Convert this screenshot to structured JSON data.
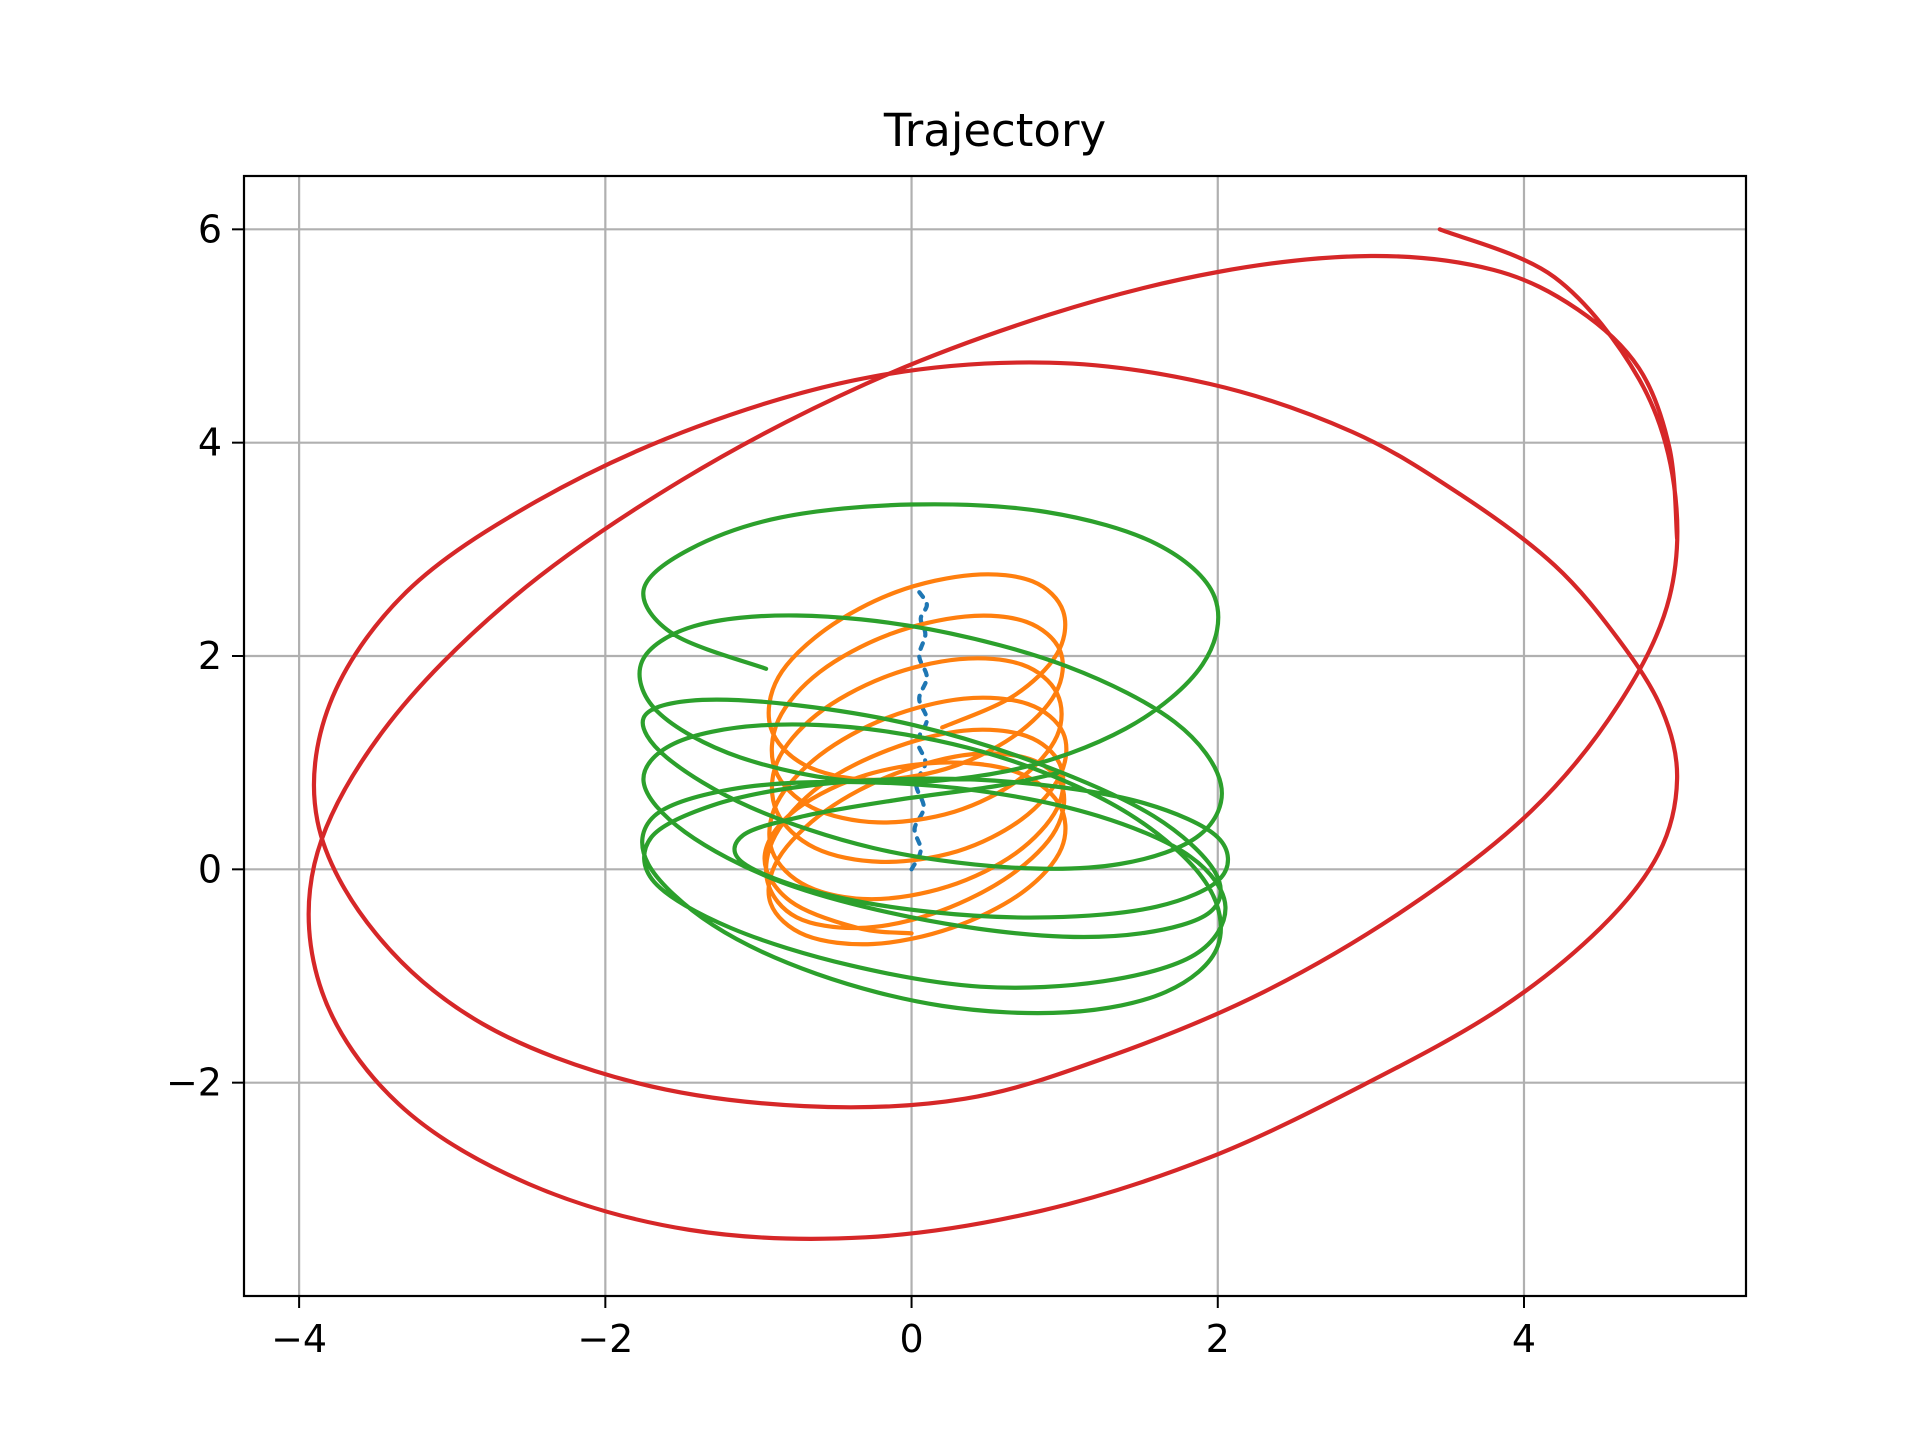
{
  "chart_data": {
    "type": "line",
    "title": "Trajectory",
    "xlabel": "",
    "ylabel": "",
    "xlim": [
      -4.36,
      5.45
    ],
    "ylim": [
      -4.0,
      6.5
    ],
    "grid": true,
    "x_ticks": [
      -4,
      -2,
      0,
      2,
      4
    ],
    "y_ticks": [
      -2,
      0,
      2,
      4,
      6
    ],
    "x_tick_labels": [
      "−4",
      "−2",
      "0",
      "2",
      "4"
    ],
    "y_tick_labels": [
      "−2",
      "0",
      "2",
      "4",
      "6"
    ],
    "series": [
      {
        "color": "#1f77b4",
        "dashed": true,
        "x": [
          0.0,
          0.06,
          0.02,
          0.08,
          0.03,
          0.09,
          0.04,
          0.1,
          0.05,
          0.1,
          0.05,
          0.09,
          0.06,
          0.1,
          0.05
        ],
        "y": [
          0.0,
          0.18,
          0.38,
          0.58,
          0.8,
          1.0,
          1.2,
          1.4,
          1.6,
          1.8,
          2.0,
          2.2,
          2.35,
          2.48,
          2.6
        ]
      },
      {
        "color": "#ff7f0e",
        "x": [
          0.0,
          -0.35,
          -0.79,
          -0.96,
          -0.79,
          -0.35,
          0.18,
          0.67,
          0.96,
          0.98,
          0.72,
          0.26,
          -0.25,
          -0.69,
          -0.92,
          -0.87,
          -0.56,
          -0.1,
          0.4,
          0.8,
          0.99,
          0.92,
          0.6,
          0.13,
          -0.35,
          -0.75,
          -0.94,
          -0.89,
          -0.6,
          -0.15,
          0.34,
          0.75,
          0.97,
          0.95,
          0.68,
          0.24,
          -0.26,
          -0.68,
          -0.91,
          -0.88,
          -0.6,
          -0.16,
          0.34,
          0.76,
          0.99,
          0.97,
          0.72,
          0.3,
          -0.2,
          -0.63,
          -0.88,
          -0.88,
          -0.62,
          -0.18,
          0.31,
          0.72,
          0.95,
          0.95,
          0.7,
          0.28,
          -0.22,
          -0.65,
          -0.89,
          -0.87,
          -0.6,
          -0.15,
          0.35,
          0.75,
          0.97,
          0.94,
          0.66,
          0.22,
          -0.28,
          -0.7,
          -0.92,
          -0.87,
          -0.56,
          -0.1,
          0.4,
          0.79,
          0.99,
          0.95,
          0.66,
          0.2
        ],
        "y": [
          -0.6,
          -0.55,
          -0.3,
          0.1,
          0.52,
          0.86,
          1.0,
          0.92,
          0.62,
          0.2,
          -0.22,
          -0.55,
          -0.7,
          -0.62,
          -0.32,
          0.1,
          0.55,
          0.9,
          1.08,
          1.02,
          0.74,
          0.32,
          -0.1,
          -0.42,
          -0.55,
          -0.45,
          -0.12,
          0.32,
          0.78,
          1.12,
          1.3,
          1.25,
          0.98,
          0.57,
          0.15,
          -0.16,
          -0.28,
          -0.16,
          0.17,
          0.62,
          1.07,
          1.42,
          1.6,
          1.55,
          1.28,
          0.88,
          0.47,
          0.17,
          0.07,
          0.2,
          0.54,
          1.0,
          1.45,
          1.8,
          1.97,
          1.92,
          1.65,
          1.25,
          0.84,
          0.54,
          0.44,
          0.58,
          0.93,
          1.4,
          1.85,
          2.2,
          2.37,
          2.32,
          2.05,
          1.65,
          1.24,
          0.94,
          0.84,
          0.98,
          1.33,
          1.8,
          2.25,
          2.6,
          2.76,
          2.7,
          2.42,
          2.02,
          1.62,
          1.33
        ]
      },
      {
        "color": "#2ca02c",
        "x": [
          0.95,
          0.55,
          -0.1,
          -0.7,
          -1.1,
          -1.1,
          -0.6,
          0.13,
          0.9,
          1.6,
          2.02,
          2.0,
          1.52,
          0.8,
          0.05,
          -0.7,
          -1.3,
          -1.7,
          -1.68,
          -1.18,
          -0.4,
          0.45,
          1.25,
          1.85,
          2.05,
          1.82,
          1.22,
          0.42,
          -0.45,
          -1.18,
          -1.68,
          -1.72,
          -1.3,
          -0.62,
          0.2,
          1.02,
          1.66,
          2.0,
          1.92,
          1.42,
          0.65,
          -0.2,
          -0.98,
          -1.55,
          -1.75,
          -1.48,
          -0.85,
          0.0,
          0.85,
          1.5,
          1.95,
          1.98,
          1.58,
          0.85,
          0.02,
          -0.82,
          -1.45,
          -1.75,
          -1.6,
          -1.05,
          -0.25,
          0.62,
          1.36,
          1.88,
          2.02,
          1.72,
          1.02,
          0.12,
          -0.75,
          -1.42,
          -1.76,
          -1.66,
          -1.12,
          -0.3,
          0.62,
          1.4,
          1.9,
          1.98,
          1.6,
          0.88,
          0.0,
          -0.85,
          -1.45,
          -1.75,
          -1.55,
          -0.95
        ],
        "y": [
          0.9,
          0.78,
          0.65,
          0.5,
          0.32,
          0.06,
          -0.22,
          -0.4,
          -0.45,
          -0.35,
          -0.08,
          0.3,
          0.62,
          0.8,
          0.85,
          0.78,
          0.6,
          0.3,
          -0.12,
          -0.55,
          -0.9,
          -1.1,
          -1.05,
          -0.8,
          -0.35,
          0.12,
          0.5,
          0.74,
          0.82,
          0.75,
          0.5,
          0.05,
          -0.52,
          -0.98,
          -1.28,
          -1.34,
          -1.15,
          -0.72,
          -0.12,
          0.52,
          1.02,
          1.3,
          1.35,
          1.18,
          0.82,
          0.35,
          -0.12,
          -0.45,
          -0.62,
          -0.6,
          -0.4,
          -0.02,
          0.5,
          0.98,
          1.35,
          1.55,
          1.58,
          1.42,
          1.05,
          0.58,
          0.2,
          0.02,
          0.05,
          0.32,
          0.8,
          1.38,
          1.9,
          2.25,
          2.38,
          2.28,
          1.95,
          1.48,
          1.05,
          0.82,
          0.92,
          1.32,
          1.92,
          2.55,
          3.05,
          3.35,
          3.42,
          3.3,
          3.0,
          2.62,
          2.2,
          1.88
        ]
      },
      {
        "color": "#d62728",
        "x": [
          3.45,
          4.2,
          4.75,
          4.98,
          4.95,
          4.62,
          4.05,
          3.25,
          2.3,
          1.3,
          0.35,
          -0.7,
          -1.8,
          -2.8,
          -3.5,
          -3.88,
          -3.8,
          -3.3,
          -2.45,
          -1.4,
          -0.25,
          0.9,
          1.95,
          2.88,
          3.6,
          4.2,
          4.62,
          4.9,
          5.0,
          4.88,
          4.5,
          3.85,
          2.98,
          1.95,
          0.85,
          -0.3,
          -1.45,
          -2.5,
          -3.35,
          -3.85,
          -3.9,
          -3.45,
          -2.6,
          -1.5,
          -0.3,
          0.9,
          2.0,
          3.0,
          3.8,
          4.35,
          4.75,
          4.95,
          5.0
        ],
        "y": [
          6.0,
          5.55,
          4.6,
          3.6,
          2.55,
          1.55,
          0.55,
          -0.35,
          -1.15,
          -1.75,
          -2.15,
          -2.22,
          -2.0,
          -1.45,
          -0.6,
          0.45,
          1.55,
          2.6,
          3.45,
          4.15,
          4.62,
          4.75,
          4.55,
          4.1,
          3.5,
          2.85,
          2.15,
          1.5,
          0.85,
          0.15,
          -0.55,
          -1.3,
          -2.0,
          -2.7,
          -3.2,
          -3.45,
          -3.38,
          -2.95,
          -2.2,
          -1.15,
          0.05,
          1.3,
          2.55,
          3.65,
          4.55,
          5.2,
          5.6,
          5.75,
          5.62,
          5.25,
          4.7,
          3.95,
          3.1
        ]
      }
    ]
  }
}
